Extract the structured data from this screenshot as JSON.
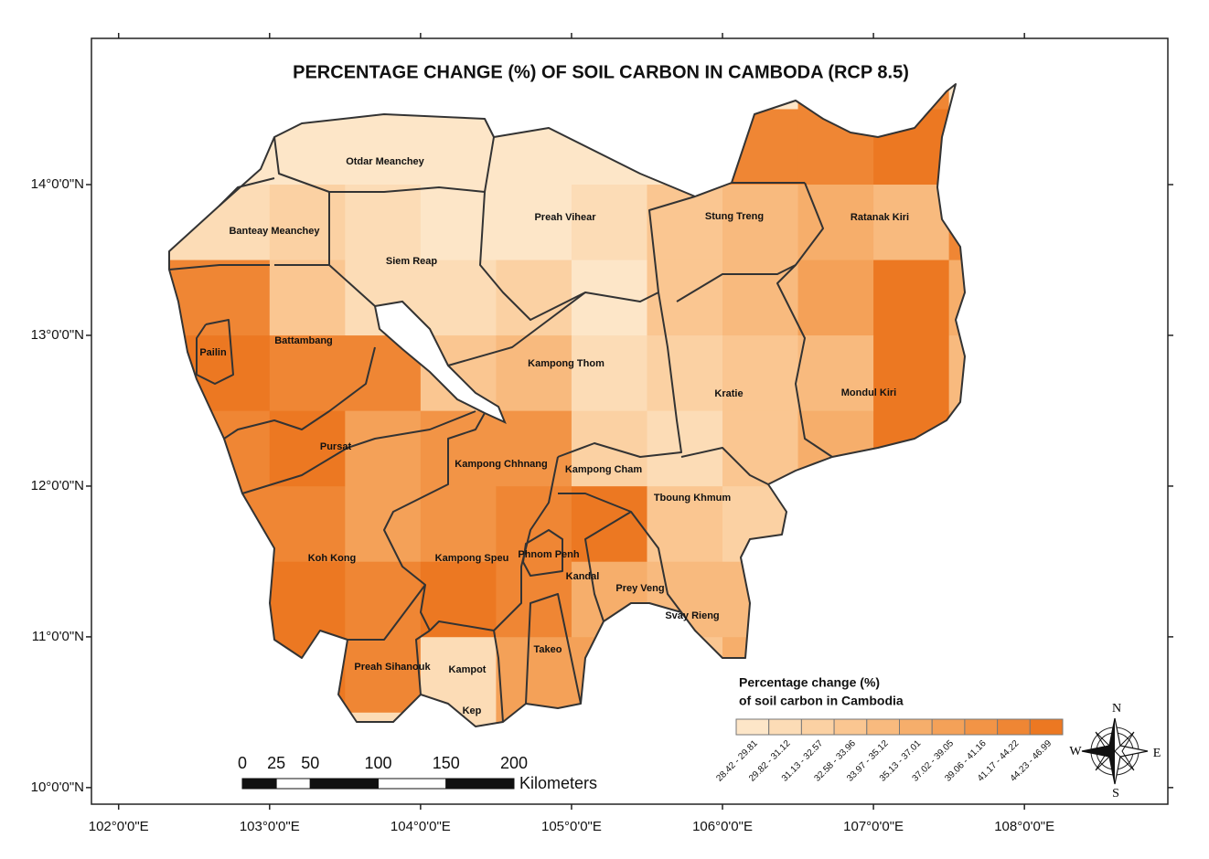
{
  "map": {
    "title": "PERCENTAGE CHANGE (%) OF SOIL CARBON IN CAMBODA (RCP 8.5)",
    "xlim": [
      101.82,
      108.95
    ],
    "ylim": [
      9.89,
      14.97
    ],
    "xticks": [
      {
        "value": 102,
        "label": "102°0'0\"E"
      },
      {
        "value": 103,
        "label": "103°0'0\"E"
      },
      {
        "value": 104,
        "label": "104°0'0\"E"
      },
      {
        "value": 105,
        "label": "105°0'0\"E"
      },
      {
        "value": 106,
        "label": "106°0'0\"E"
      },
      {
        "value": 107,
        "label": "107°0'0\"E"
      },
      {
        "value": 108,
        "label": "108°0'0\"E"
      }
    ],
    "yticks": [
      {
        "value": 10,
        "label": "10°0'0\"N"
      },
      {
        "value": 11,
        "label": "11°0'0\"N"
      },
      {
        "value": 12,
        "label": "12°0'0\"N"
      },
      {
        "value": 13,
        "label": "13°0'0\"N"
      },
      {
        "value": 14,
        "label": "14°0'0\"N"
      }
    ],
    "provinces": [
      "Otdar Meanchey",
      "Banteay Meanchey",
      "Siem Reap",
      "Preah Vihear",
      "Stung Treng",
      "Ratanak Kiri",
      "Pailin",
      "Battambang",
      "Kampong Thom",
      "Kratie",
      "Mondul Kiri",
      "Pursat",
      "Kampong Chhnang",
      "Kampong Cham",
      "Tboung Khmum",
      "Koh Kong",
      "Kampong Speu",
      "Phnom Penh",
      "Kandal",
      "Prey Veng",
      "Svay Rieng",
      "Preah Sihanouk",
      "Kampot",
      "Takeo",
      "Kep"
    ],
    "legend": {
      "title_lines": [
        "Percentage change (%)",
        "of soil carbon in Cambodia"
      ],
      "classes": [
        {
          "label": "28.42 - 29.81",
          "color": "#fde6c8"
        },
        {
          "label": "29.82 - 31.12",
          "color": "#fcdcb6"
        },
        {
          "label": "31.13 - 32.57",
          "color": "#fbd1a3"
        },
        {
          "label": "32.58 - 33.96",
          "color": "#fac691"
        },
        {
          "label": "33.97 - 35.12",
          "color": "#f8ba7e"
        },
        {
          "label": "35.13 - 37.01",
          "color": "#f6ae6b"
        },
        {
          "label": "37.02 - 39.05",
          "color": "#f4a158"
        },
        {
          "label": "39.06 - 41.16",
          "color": "#f29446"
        },
        {
          "label": "41.17 - 44.22",
          "color": "#ef8634"
        },
        {
          "label": "44.23 - 46.99",
          "color": "#ec7822"
        }
      ]
    },
    "scale_bar": {
      "ticks": [
        0,
        25,
        50,
        100,
        150,
        200
      ],
      "unit": "Kilometers"
    },
    "compass": [
      "N",
      "E",
      "S",
      "W"
    ]
  }
}
